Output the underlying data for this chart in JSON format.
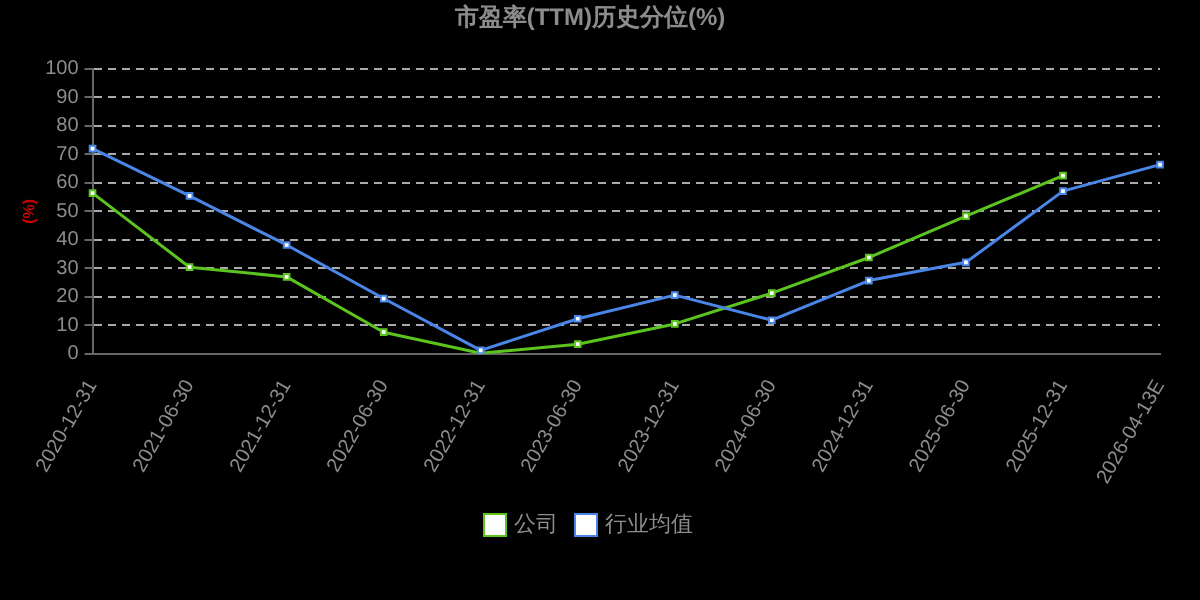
{
  "chart_data": {
    "type": "line",
    "title": "市盈率(TTM)历史分位(%)",
    "ylabel": "(%)",
    "categories": [
      "2020-12-31",
      "2021-06-30",
      "2021-12-31",
      "2022-06-30",
      "2022-12-31",
      "2023-06-30",
      "2023-12-31",
      "2024-06-30",
      "2024-12-31",
      "2025-06-30",
      "2025-12-31",
      "2026-04-13E"
    ],
    "series": [
      {
        "name": "公司",
        "color": "#5cc41f",
        "values": [
          56.4,
          30.4,
          27,
          7.6,
          0.2,
          3.4,
          10.5,
          21.3,
          33.8,
          48.3,
          62.5,
          null
        ]
      },
      {
        "name": "行业均值",
        "color": "#4a86e8",
        "values": [
          72,
          55.4,
          38.2,
          19.4,
          1.2,
          12.3,
          20.6,
          11.8,
          25.7,
          32.1,
          57.1,
          66.4
        ]
      }
    ],
    "ylim": [
      0,
      100
    ],
    "yticks": [
      0,
      10,
      20,
      30,
      40,
      50,
      60,
      70,
      80,
      90,
      100
    ],
    "grid": "y",
    "legend": "bottom",
    "marker": "square",
    "line_style": "solid"
  }
}
